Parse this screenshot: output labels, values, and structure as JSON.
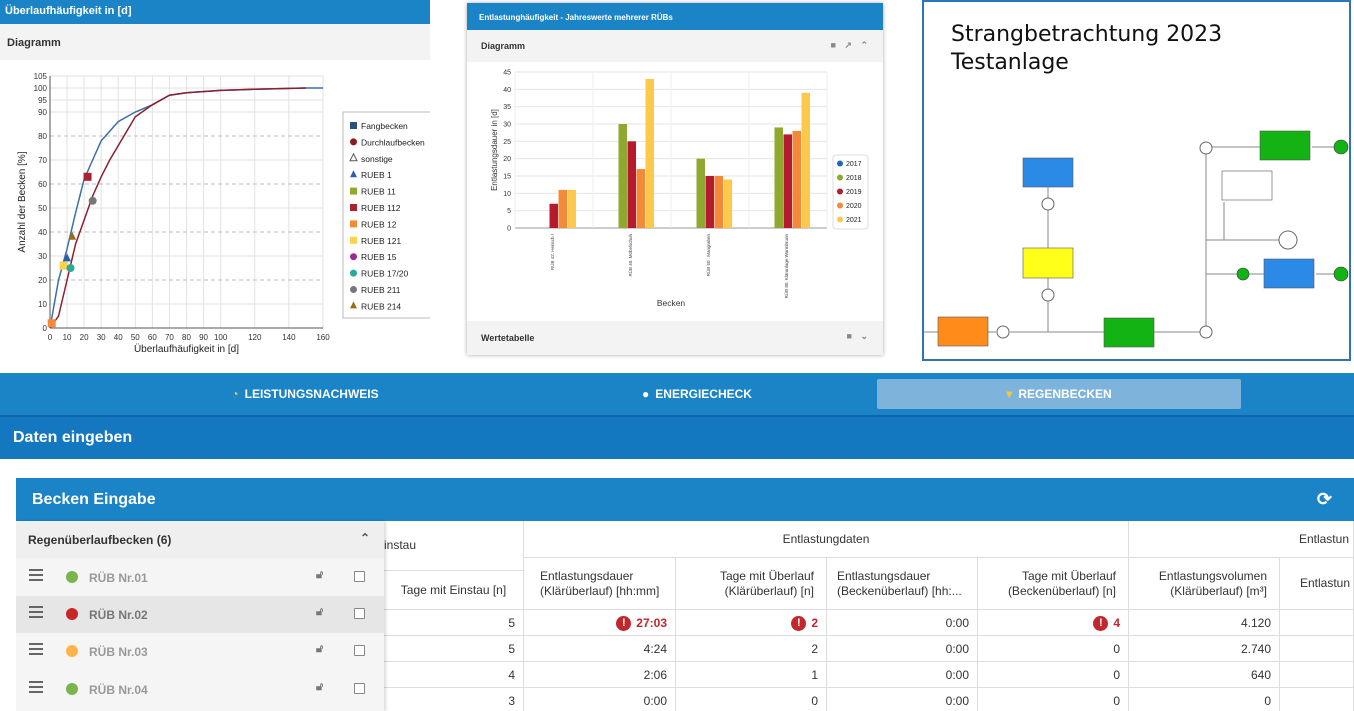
{
  "panel1": {
    "header": "Überlaufhäufigkeit in [d]",
    "subheader": "Diagramm",
    "legend": [
      "Fangbecken",
      "Durchlaufbecken",
      "sonstige",
      "RUEB 1",
      "RUEB 11",
      "RUEB 112",
      "RUEB 12",
      "RUEB 121",
      "RUEB 15",
      "RUEB 17/20",
      "RUEB 211",
      "RUEB 214"
    ]
  },
  "panel2": {
    "header": "Entlastunghäufigkeit - Jahreswerte mehrerer RÜBs",
    "subheader": "Diagramm",
    "footer": "Wertetabelle"
  },
  "panel3": {
    "title_line1": "Strangbetrachtung 2023",
    "title_line2": "Testanlage"
  },
  "chart_data": [
    {
      "type": "line",
      "xlabel": "Überlaufhäufigkeit in [d]",
      "ylabel": "Anzahl der Becken [%]",
      "xlim": [
        0,
        160
      ],
      "ylim": [
        0,
        105
      ],
      "xticks": [
        0,
        10,
        20,
        30,
        40,
        50,
        60,
        70,
        80,
        90,
        100,
        120,
        140,
        160
      ],
      "yticks": [
        0,
        10,
        20,
        30,
        40,
        50,
        60,
        70,
        80,
        90,
        95,
        100,
        105
      ],
      "series": [
        {
          "name": "Fangbecken",
          "color": "#3b6fa8",
          "x": [
            0,
            5,
            10,
            15,
            20,
            25,
            30,
            35,
            40,
            50,
            60,
            70,
            80,
            100,
            120,
            150,
            160
          ],
          "y": [
            0,
            20,
            33,
            48,
            62,
            70,
            78,
            82,
            86,
            90,
            93,
            97,
            98,
            99,
            99.5,
            100,
            100
          ]
        },
        {
          "name": "Durchlaufbecken",
          "color": "#8b2030",
          "x": [
            0,
            5,
            10,
            15,
            20,
            25,
            30,
            35,
            40,
            50,
            60,
            70,
            80,
            100,
            120,
            150
          ],
          "y": [
            0,
            5,
            20,
            35,
            45,
            55,
            63,
            70,
            76,
            88,
            93,
            97,
            98,
            99,
            99.5,
            100
          ]
        }
      ],
      "markers": [
        {
          "name": "RUEB 112",
          "x": 22,
          "y": 63
        },
        {
          "name": "RUEB 211",
          "x": 25,
          "y": 53
        },
        {
          "name": "RUEB 214",
          "x": 13,
          "y": 38
        },
        {
          "name": "RUEB 1",
          "x": 10,
          "y": 29
        },
        {
          "name": "RUEB 121",
          "x": 8,
          "y": 26
        },
        {
          "name": "RUEB 17/20",
          "x": 12,
          "y": 25
        },
        {
          "name": "RUEB 12",
          "x": 1,
          "y": 2
        }
      ]
    },
    {
      "type": "bar",
      "xlabel": "Becken",
      "ylabel": "Entlastungsdauer in [d]",
      "ylim": [
        0,
        45
      ],
      "yticks": [
        0,
        5,
        10,
        15,
        20,
        25,
        30,
        35,
        40,
        45
      ],
      "categories": [
        "RÜB 42. Herisch I",
        "RÜB 40. Möbelschuh",
        "RÜB 50 . Mangraben",
        "RÜB 80. Kläranlage Warmbrunn"
      ],
      "series": [
        {
          "name": "2017",
          "color": "#1c69b5",
          "values": [
            0,
            0,
            0,
            0
          ]
        },
        {
          "name": "2018",
          "color": "#8fa830",
          "values": [
            0,
            30,
            20,
            29
          ]
        },
        {
          "name": "2019",
          "color": "#b51a2e",
          "values": [
            7,
            25,
            15,
            27
          ]
        },
        {
          "name": "2020",
          "color": "#f5893a",
          "values": [
            11,
            17,
            15,
            28
          ]
        },
        {
          "name": "2021",
          "color": "#fdc94d",
          "values": [
            11,
            43,
            14,
            39
          ]
        }
      ]
    }
  ],
  "nav": {
    "item1": "LEISTUNGSNACHWEIS",
    "item2": "ENERGIECHECK",
    "item3": "REGENBECKEN"
  },
  "section_title": "Daten eingeben",
  "becken": {
    "title": "Becken Eingabe",
    "group": "Regenüberlaufbecken (6)",
    "items": [
      {
        "label": "RÜB Nr.01",
        "color": "#79b54a"
      },
      {
        "label": "RÜB Nr.02",
        "color": "#c62828"
      },
      {
        "label": "RÜB Nr.03",
        "color": "#ffb54a"
      },
      {
        "label": "RÜB Nr.04",
        "color": "#79b54a"
      }
    ]
  },
  "table": {
    "head_einstau": "instau",
    "head_entlastungdaten": "Entlastungdaten",
    "head_entlastun": "Entlastun",
    "cols": {
      "c0": "Tage mit Einstau [n]",
      "c1": "Entlastungsdauer (Klärüberlauf) [hh:mm]",
      "c2": "Tage mit Überlauf (Klärüberlauf) [n]",
      "c3": "Entlastungsdauer (Beckenüberlauf) [hh:...",
      "c4": "Tage mit Überlauf (Beckenüberlauf) [n]",
      "c5": "Entlastungsvolumen (Klärüberlauf) [m³]",
      "c6": "Entlastun (Beckenü"
    },
    "rows": [
      {
        "c0": "5",
        "c1": "27:03",
        "c2": "2",
        "c3": "0:00",
        "c4": "4",
        "c5": "4.120"
      },
      {
        "c0": "5",
        "c1": "4:24",
        "c2": "2",
        "c3": "0:00",
        "c4": "0",
        "c5": "2.740"
      },
      {
        "c0": "4",
        "c1": "2:06",
        "c2": "1",
        "c3": "0:00",
        "c4": "0",
        "c5": "640"
      },
      {
        "c0": "3",
        "c1": "0:00",
        "c2": "0",
        "c3": "0:00",
        "c4": "0",
        "c5": "0"
      }
    ]
  }
}
